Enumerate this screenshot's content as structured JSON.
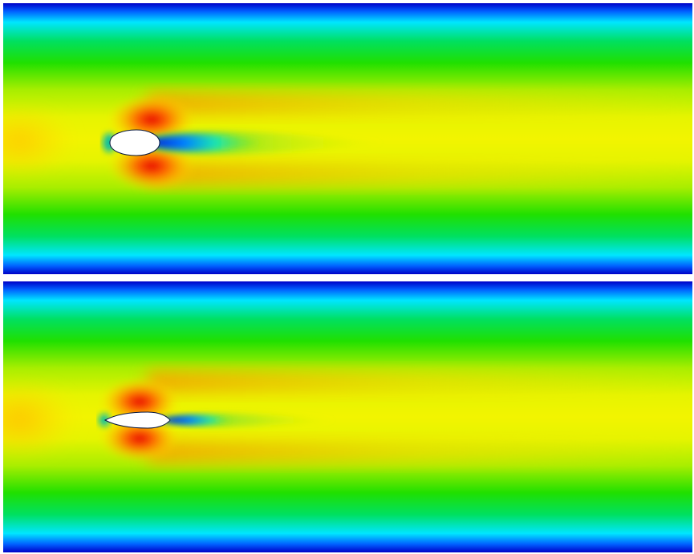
{
  "figure": {
    "panels": [
      {
        "id": "top",
        "description_key": "flow-field-ellipse-obstacle",
        "obstacle_shape": "blunt-ellipse"
      },
      {
        "id": "bottom",
        "description_key": "flow-field-airfoil-obstacle",
        "obstacle_shape": "pointed-airfoil"
      }
    ],
    "colormap": [
      "#0000c8",
      "#00e6ff",
      "#00e000",
      "#c8f000",
      "#ffff00",
      "#ff9a00",
      "#e60000"
    ],
    "background": "#ffffff"
  }
}
